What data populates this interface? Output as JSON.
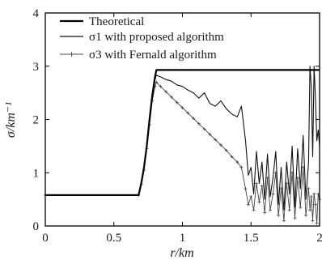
{
  "chart_data": {
    "type": "line",
    "xlabel": "r/km",
    "ylabel": "σ/km⁻¹",
    "xlim": [
      0,
      2
    ],
    "ylim": [
      0,
      4
    ],
    "xticks": [
      "0",
      "0.5",
      "1",
      "1.5",
      "2"
    ],
    "yticks": [
      "0",
      "1",
      "2",
      "3",
      "4"
    ],
    "grid": false,
    "legend_position": "top-left",
    "series": [
      {
        "name": "Theoretical",
        "color": "#000000",
        "marker": "none",
        "x": [
          0,
          0.68,
          0.7,
          0.72,
          0.74,
          0.76,
          0.78,
          0.8,
          0.81,
          0.81,
          2.0
        ],
        "y": [
          0.58,
          0.58,
          0.8,
          1.1,
          1.5,
          2.0,
          2.45,
          2.8,
          2.93,
          2.93,
          2.93
        ]
      },
      {
        "name": "σ1 with proposed algorithm",
        "color": "#111111",
        "marker": "none",
        "x": [
          0,
          0.68,
          0.7,
          0.72,
          0.74,
          0.76,
          0.78,
          0.8,
          0.81,
          0.84,
          0.88,
          0.92,
          0.96,
          1.0,
          1.04,
          1.08,
          1.12,
          1.16,
          1.2,
          1.24,
          1.28,
          1.32,
          1.36,
          1.4,
          1.43,
          1.46,
          1.48,
          1.5,
          1.52,
          1.54,
          1.56,
          1.58,
          1.6,
          1.62,
          1.64,
          1.66,
          1.68,
          1.7,
          1.72,
          1.74,
          1.76,
          1.78,
          1.8,
          1.82,
          1.84,
          1.86,
          1.88,
          1.9,
          1.92,
          1.93,
          1.94,
          1.95,
          1.96,
          1.97,
          1.98,
          1.99,
          2.0
        ],
        "y": [
          0.58,
          0.58,
          0.8,
          1.1,
          1.5,
          2.0,
          2.45,
          2.75,
          2.83,
          2.8,
          2.75,
          2.72,
          2.65,
          2.62,
          2.55,
          2.5,
          2.4,
          2.5,
          2.3,
          2.25,
          2.35,
          2.2,
          2.1,
          2.05,
          2.25,
          1.6,
          0.95,
          1.1,
          0.6,
          1.4,
          0.8,
          1.2,
          0.5,
          1.35,
          0.55,
          0.9,
          1.4,
          0.4,
          1.1,
          0.3,
          1.2,
          0.6,
          1.5,
          0.35,
          1.45,
          0.7,
          1.7,
          0.5,
          1.2,
          3.0,
          2.6,
          1.3,
          3.0,
          2.4,
          1.6,
          1.8,
          1.5
        ]
      },
      {
        "name": "σ3 with Fernald algorithm",
        "color": "#444444",
        "marker": "+",
        "x": [
          0,
          0.68,
          0.7,
          0.72,
          0.74,
          0.76,
          0.78,
          0.8,
          0.81,
          0.84,
          0.88,
          0.92,
          0.96,
          1.0,
          1.04,
          1.08,
          1.12,
          1.16,
          1.2,
          1.24,
          1.28,
          1.32,
          1.36,
          1.4,
          1.43,
          1.46,
          1.48,
          1.5,
          1.52,
          1.54,
          1.56,
          1.58,
          1.6,
          1.62,
          1.64,
          1.66,
          1.68,
          1.7,
          1.72,
          1.74,
          1.76,
          1.78,
          1.8,
          1.82,
          1.84,
          1.86,
          1.88,
          1.9,
          1.92,
          1.93,
          1.94,
          1.95,
          1.96,
          1.97,
          1.98,
          1.99,
          2.0
        ],
        "y": [
          0.58,
          0.58,
          0.78,
          1.05,
          1.45,
          1.9,
          2.35,
          2.62,
          2.7,
          2.62,
          2.52,
          2.42,
          2.32,
          2.22,
          2.12,
          2.02,
          1.92,
          1.82,
          1.72,
          1.62,
          1.52,
          1.42,
          1.3,
          1.2,
          1.1,
          0.7,
          0.4,
          0.55,
          0.3,
          0.8,
          0.45,
          0.75,
          0.25,
          0.9,
          0.3,
          0.6,
          1.0,
          0.2,
          0.7,
          0.1,
          0.8,
          0.3,
          1.0,
          0.15,
          0.9,
          0.35,
          1.1,
          0.2,
          0.7,
          0.3,
          0.55,
          0.1,
          0.6,
          0.4,
          0.05,
          0.6,
          0.5
        ]
      }
    ]
  }
}
